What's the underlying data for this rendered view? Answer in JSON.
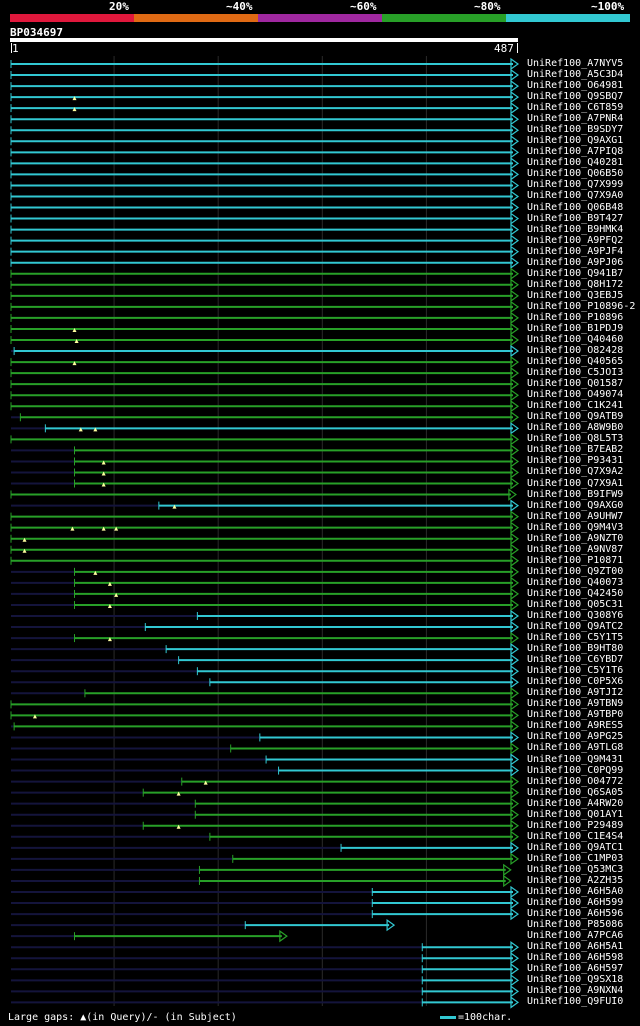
{
  "query": {
    "name": "BP034697",
    "start": "1",
    "end": "487",
    "length": 487
  },
  "identity_scale": {
    "labels": [
      "20%",
      "~40%",
      "~60%",
      "~80%",
      "~100%"
    ],
    "colors": [
      "#e0183c",
      "#e06a14",
      "#a028a0",
      "#28a028",
      "#32c8d2"
    ]
  },
  "colors": {
    "background": "#000000",
    "cyan": "#32c8d2",
    "green": "#28a028",
    "dark": "#14143c",
    "marker": "#ffffa0"
  },
  "legend": {
    "gaps": "Large gaps: ▲(in Query)/- (in Subject)",
    "scale": "=100char."
  },
  "hits": [
    {
      "id": "UniRef100_A7NYV5",
      "c": "cyan",
      "s": 1,
      "e": 487,
      "arrow": true,
      "m": []
    },
    {
      "id": "UniRef100_A5C3D4",
      "c": "cyan",
      "s": 1,
      "e": 487,
      "arrow": true,
      "m": []
    },
    {
      "id": "UniRef100_O64981",
      "c": "cyan",
      "s": 1,
      "e": 487,
      "arrow": true,
      "m": []
    },
    {
      "id": "UniRef100_Q9SBQ7",
      "c": "cyan",
      "s": 1,
      "e": 487,
      "arrow": true,
      "m": [
        62
      ]
    },
    {
      "id": "UniRef100_C6T859",
      "c": "cyan",
      "s": 1,
      "e": 487,
      "arrow": true,
      "m": [
        62
      ]
    },
    {
      "id": "UniRef100_A7PNR4",
      "c": "cyan",
      "s": 1,
      "e": 487,
      "arrow": true,
      "m": []
    },
    {
      "id": "UniRef100_B9SDY7",
      "c": "cyan",
      "s": 1,
      "e": 487,
      "arrow": true,
      "m": []
    },
    {
      "id": "UniRef100_Q9AXG1",
      "c": "cyan",
      "s": 1,
      "e": 487,
      "arrow": true,
      "m": []
    },
    {
      "id": "UniRef100_A7PIQ8",
      "c": "cyan",
      "s": 1,
      "e": 487,
      "arrow": true,
      "m": []
    },
    {
      "id": "UniRef100_Q40281",
      "c": "cyan",
      "s": 1,
      "e": 487,
      "arrow": true,
      "m": []
    },
    {
      "id": "UniRef100_Q06B50",
      "c": "cyan",
      "s": 1,
      "e": 487,
      "arrow": true,
      "m": []
    },
    {
      "id": "UniRef100_Q7X999",
      "c": "cyan",
      "s": 1,
      "e": 487,
      "arrow": true,
      "m": []
    },
    {
      "id": "UniRef100_Q7X9A0",
      "c": "cyan",
      "s": 1,
      "e": 487,
      "arrow": true,
      "m": []
    },
    {
      "id": "UniRef100_Q06B48",
      "c": "cyan",
      "s": 1,
      "e": 487,
      "arrow": true,
      "m": []
    },
    {
      "id": "UniRef100_B9T427",
      "c": "cyan",
      "s": 1,
      "e": 487,
      "arrow": true,
      "m": []
    },
    {
      "id": "UniRef100_B9HMK4",
      "c": "cyan",
      "s": 1,
      "e": 487,
      "arrow": true,
      "m": []
    },
    {
      "id": "UniRef100_A9PFQ2",
      "c": "cyan",
      "s": 1,
      "e": 487,
      "arrow": true,
      "m": []
    },
    {
      "id": "UniRef100_A9PJF4",
      "c": "cyan",
      "s": 1,
      "e": 487,
      "arrow": true,
      "m": []
    },
    {
      "id": "UniRef100_A9PJ06",
      "c": "cyan",
      "s": 1,
      "e": 487,
      "arrow": true,
      "m": []
    },
    {
      "id": "UniRef100_Q941B7",
      "c": "green",
      "s": 1,
      "e": 487,
      "arrow": true,
      "m": []
    },
    {
      "id": "UniRef100_Q8H172",
      "c": "green",
      "s": 1,
      "e": 487,
      "arrow": true,
      "m": []
    },
    {
      "id": "UniRef100_Q3EBJ5",
      "c": "green",
      "s": 1,
      "e": 487,
      "arrow": true,
      "m": []
    },
    {
      "id": "UniRef100_P10896-2",
      "c": "green",
      "s": 1,
      "e": 487,
      "arrow": true,
      "m": []
    },
    {
      "id": "UniRef100_P10896",
      "c": "green",
      "s": 1,
      "e": 487,
      "arrow": true,
      "m": []
    },
    {
      "id": "UniRef100_B1PDJ9",
      "c": "green",
      "s": 1,
      "e": 487,
      "arrow": true,
      "m": [
        62
      ]
    },
    {
      "id": "UniRef100_Q40460",
      "c": "green",
      "s": 1,
      "e": 487,
      "arrow": true,
      "m": [
        64
      ]
    },
    {
      "id": "UniRef100_O82428",
      "c": "cyan",
      "s": 4,
      "e": 487,
      "arrow": true,
      "m": []
    },
    {
      "id": "UniRef100_Q40565",
      "c": "green",
      "s": 1,
      "e": 487,
      "arrow": true,
      "m": [
        62
      ]
    },
    {
      "id": "UniRef100_C5JOI3",
      "c": "green",
      "s": 1,
      "e": 487,
      "arrow": true,
      "m": []
    },
    {
      "id": "UniRef100_Q01587",
      "c": "green",
      "s": 1,
      "e": 487,
      "arrow": true,
      "m": []
    },
    {
      "id": "UniRef100_O49074",
      "c": "green",
      "s": 1,
      "e": 487,
      "arrow": true,
      "m": []
    },
    {
      "id": "UniRef100_C1K241",
      "c": "green",
      "s": 1,
      "e": 487,
      "arrow": true,
      "m": []
    },
    {
      "id": "UniRef100_Q9ATB9",
      "c": "green",
      "s": 10,
      "e": 487,
      "arrow": true,
      "m": []
    },
    {
      "id": "UniRef100_A8W9B0",
      "c": "cyan",
      "s": 34,
      "e": 487,
      "arrow": true,
      "m": [
        68,
        82
      ]
    },
    {
      "id": "UniRef100_Q8L5T3",
      "c": "green",
      "s": 1,
      "e": 487,
      "arrow": true,
      "m": []
    },
    {
      "id": "UniRef100_B7EAB2",
      "c": "green",
      "s": 62,
      "e": 487,
      "arrow": true,
      "m": []
    },
    {
      "id": "UniRef100_P93431",
      "c": "green",
      "s": 62,
      "e": 487,
      "arrow": true,
      "m": [
        90
      ]
    },
    {
      "id": "UniRef100_Q7X9A2",
      "c": "green",
      "s": 62,
      "e": 487,
      "arrow": true,
      "m": [
        90
      ]
    },
    {
      "id": "UniRef100_Q7X9A1",
      "c": "green",
      "s": 62,
      "e": 487,
      "arrow": true,
      "m": [
        90
      ]
    },
    {
      "id": "UniRef100_B9IFW9",
      "c": "green",
      "s": 1,
      "e": 485,
      "arrow": true,
      "m": []
    },
    {
      "id": "UniRef100_Q9AXG0",
      "c": "cyan",
      "s": 143,
      "e": 487,
      "arrow": true,
      "m": [
        158
      ]
    },
    {
      "id": "UniRef100_A9UHW7",
      "c": "green",
      "s": 1,
      "e": 487,
      "arrow": true,
      "m": []
    },
    {
      "id": "UniRef100_Q9M4V3",
      "c": "green",
      "s": 1,
      "e": 487,
      "arrow": true,
      "m": [
        60,
        90,
        102
      ]
    },
    {
      "id": "UniRef100_A9NZT0",
      "c": "green",
      "s": 1,
      "e": 487,
      "arrow": true,
      "m": [
        14
      ]
    },
    {
      "id": "UniRef100_A9NV87",
      "c": "green",
      "s": 1,
      "e": 487,
      "arrow": true,
      "m": [
        14
      ]
    },
    {
      "id": "UniRef100_P10871",
      "c": "green",
      "s": 1,
      "e": 487,
      "arrow": true,
      "m": []
    },
    {
      "id": "UniRef100_Q9ZT00",
      "c": "green",
      "s": 62,
      "e": 487,
      "arrow": true,
      "m": [
        82
      ]
    },
    {
      "id": "UniRef100_Q40073",
      "c": "green",
      "s": 62,
      "e": 487,
      "arrow": true,
      "m": [
        96
      ]
    },
    {
      "id": "UniRef100_Q42450",
      "c": "green",
      "s": 62,
      "e": 487,
      "arrow": true,
      "m": [
        102
      ]
    },
    {
      "id": "UniRef100_Q05C31",
      "c": "green",
      "s": 62,
      "e": 487,
      "arrow": true,
      "m": [
        96
      ]
    },
    {
      "id": "UniRef100_Q308Y6",
      "c": "cyan",
      "s": 180,
      "e": 487,
      "arrow": true,
      "m": []
    },
    {
      "id": "UniRef100_Q9ATC2",
      "c": "cyan",
      "s": 130,
      "e": 487,
      "arrow": true,
      "m": []
    },
    {
      "id": "UniRef100_C5Y1T5",
      "c": "green",
      "s": 62,
      "e": 487,
      "arrow": true,
      "m": [
        96
      ]
    },
    {
      "id": "UniRef100_B9HT80",
      "c": "cyan",
      "s": 150,
      "e": 487,
      "arrow": true,
      "m": []
    },
    {
      "id": "UniRef100_C6YBD7",
      "c": "cyan",
      "s": 162,
      "e": 487,
      "arrow": true,
      "m": []
    },
    {
      "id": "UniRef100_C5Y1T6",
      "c": "cyan",
      "s": 180,
      "e": 487,
      "arrow": true,
      "m": []
    },
    {
      "id": "UniRef100_C0P5X6",
      "c": "cyan",
      "s": 192,
      "e": 487,
      "arrow": true,
      "m": []
    },
    {
      "id": "UniRef100_A9TJI2",
      "c": "green",
      "s": 72,
      "e": 487,
      "arrow": true,
      "m": []
    },
    {
      "id": "UniRef100_A9TBN9",
      "c": "green",
      "s": 0,
      "e": 487,
      "arrow": true,
      "m": []
    },
    {
      "id": "UniRef100_A9TBP0",
      "c": "green",
      "s": 1,
      "e": 487,
      "arrow": true,
      "m": [
        24
      ]
    },
    {
      "id": "UniRef100_A9RES5",
      "c": "green",
      "s": 4,
      "e": 487,
      "arrow": true,
      "m": []
    },
    {
      "id": "UniRef100_A9PG25",
      "c": "cyan",
      "s": 240,
      "e": 487,
      "arrow": true,
      "m": []
    },
    {
      "id": "UniRef100_A9TLG8",
      "c": "green",
      "s": 212,
      "e": 487,
      "arrow": true,
      "m": []
    },
    {
      "id": "UniRef100_Q9M431",
      "c": "cyan",
      "s": 246,
      "e": 487,
      "arrow": true,
      "m": []
    },
    {
      "id": "UniRef100_C0PQ99",
      "c": "cyan",
      "s": 258,
      "e": 487,
      "arrow": true,
      "m": []
    },
    {
      "id": "UniRef100_O04772",
      "c": "green",
      "s": 165,
      "e": 487,
      "arrow": true,
      "m": [
        188
      ]
    },
    {
      "id": "UniRef100_Q6SA05",
      "c": "green",
      "s": 128,
      "e": 487,
      "arrow": true,
      "m": [
        162
      ]
    },
    {
      "id": "UniRef100_A4RW20",
      "c": "green",
      "s": 178,
      "e": 487,
      "arrow": true,
      "m": []
    },
    {
      "id": "UniRef100_Q01AY1",
      "c": "green",
      "s": 178,
      "e": 487,
      "arrow": true,
      "m": []
    },
    {
      "id": "UniRef100_P29489",
      "c": "green",
      "s": 128,
      "e": 487,
      "arrow": true,
      "m": [
        162
      ]
    },
    {
      "id": "UniRef100_C1E4S4",
      "c": "green",
      "s": 192,
      "e": 487,
      "arrow": true,
      "m": []
    },
    {
      "id": "UniRef100_Q9ATC1",
      "c": "cyan",
      "s": 318,
      "e": 487,
      "arrow": true,
      "m": []
    },
    {
      "id": "UniRef100_C1MP03",
      "c": "green",
      "s": 214,
      "e": 487,
      "arrow": true,
      "m": []
    },
    {
      "id": "UniRef100_Q53MC3",
      "c": "green",
      "s": 182,
      "e": 480,
      "arrow": true,
      "m": []
    },
    {
      "id": "UniRef100_A2ZH35",
      "c": "green",
      "s": 182,
      "e": 480,
      "arrow": true,
      "m": []
    },
    {
      "id": "UniRef100_A6H5A0",
      "c": "cyan",
      "s": 348,
      "e": 487,
      "arrow": true,
      "m": []
    },
    {
      "id": "UniRef100_A6H599",
      "c": "cyan",
      "s": 348,
      "e": 487,
      "arrow": true,
      "m": []
    },
    {
      "id": "UniRef100_A6H596",
      "c": "cyan",
      "s": 348,
      "e": 487,
      "arrow": true,
      "m": []
    },
    {
      "id": "UniRef100_P85086",
      "c": "cyan",
      "s": 226,
      "e": 368,
      "arrow": true,
      "m": []
    },
    {
      "id": "UniRef100_A7PCA6",
      "c": "green",
      "s": 62,
      "e": 265,
      "arrow": true,
      "m": []
    },
    {
      "id": "UniRef100_A6H5A1",
      "c": "cyan",
      "s": 396,
      "e": 487,
      "arrow": true,
      "m": []
    },
    {
      "id": "UniRef100_A6H598",
      "c": "cyan",
      "s": 396,
      "e": 487,
      "arrow": true,
      "m": []
    },
    {
      "id": "UniRef100_A6H597",
      "c": "cyan",
      "s": 396,
      "e": 487,
      "arrow": true,
      "m": []
    },
    {
      "id": "UniRef100_Q9SX18",
      "c": "cyan",
      "s": 396,
      "e": 487,
      "arrow": true,
      "m": []
    },
    {
      "id": "UniRef100_A9NXN4",
      "c": "cyan",
      "s": 396,
      "e": 487,
      "arrow": true,
      "m": []
    },
    {
      "id": "UniRef100_Q9FUI0",
      "c": "cyan",
      "s": 396,
      "e": 487,
      "arrow": true,
      "m": []
    }
  ]
}
